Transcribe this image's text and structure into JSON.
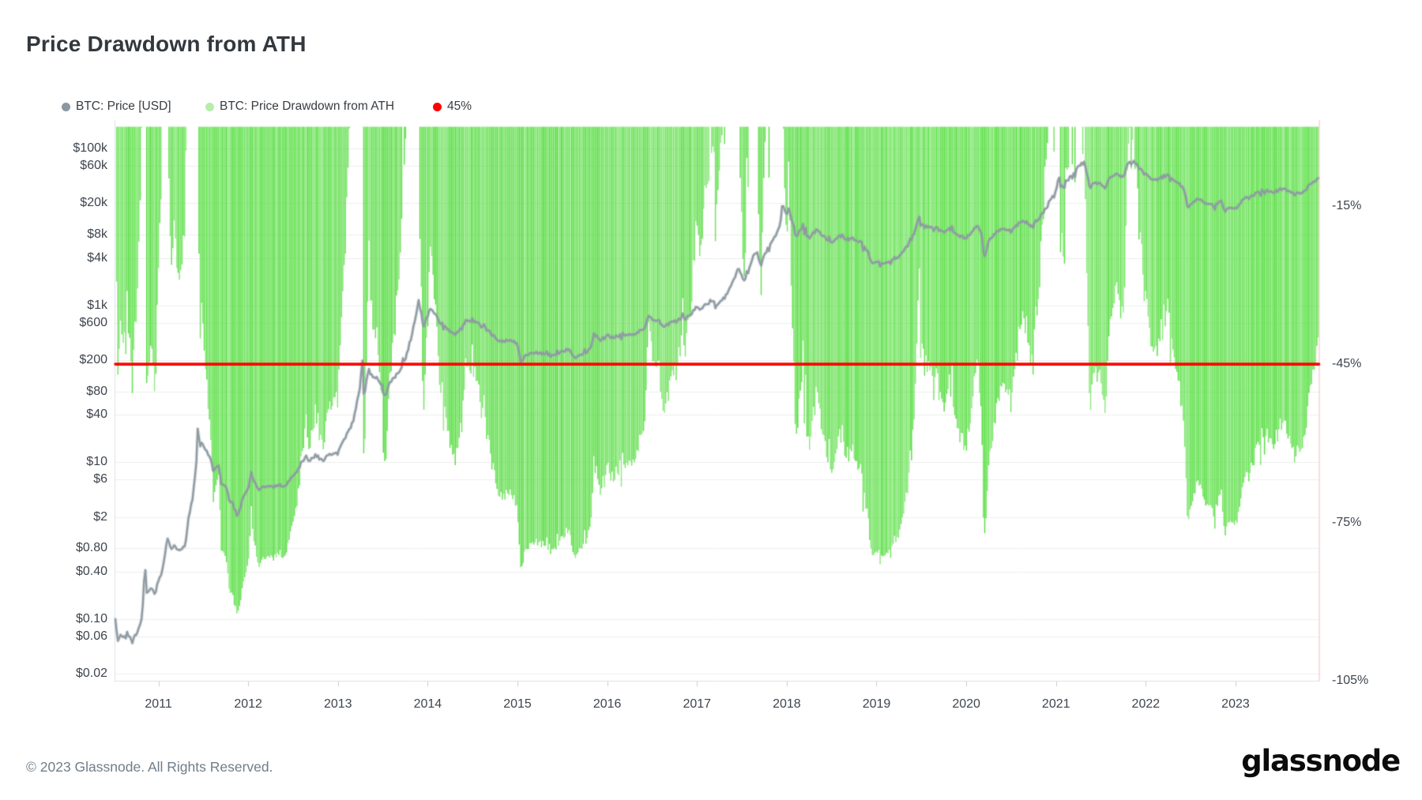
{
  "page": {
    "title": "Price Drawdown from ATH",
    "copyright": "© 2023 Glassnode. All Rights Reserved.",
    "brand_logo_text": "glassnode"
  },
  "legend": [
    {
      "id": "price",
      "label": "BTC: Price [USD]",
      "dot_color": "#8B97A1"
    },
    {
      "id": "drawdown",
      "label": "BTC: Price Drawdown from ATH",
      "dot_color": "#B7ECAC"
    },
    {
      "id": "threshold",
      "label": "45%",
      "dot_color": "#FF0000"
    }
  ],
  "chart_data": {
    "type": "area",
    "title": "Price Drawdown from ATH",
    "x_axis": {
      "unit": "year",
      "range_decimal_years": [
        2010.52,
        2023.92
      ],
      "ticks": [
        2011,
        2012,
        2013,
        2014,
        2015,
        2016,
        2017,
        2018,
        2019,
        2020,
        2021,
        2022,
        2023
      ]
    },
    "price_axis": {
      "side": "left",
      "scale": "log",
      "unit": "USD",
      "ticks": [
        {
          "value": 100000,
          "label": "$100k"
        },
        {
          "value": 60000,
          "label": "$60k"
        },
        {
          "value": 20000,
          "label": "$20k"
        },
        {
          "value": 8000,
          "label": "$8k"
        },
        {
          "value": 4000,
          "label": "$4k"
        },
        {
          "value": 1000,
          "label": "$1k"
        },
        {
          "value": 600,
          "label": "$600"
        },
        {
          "value": 200,
          "label": "$200"
        },
        {
          "value": 80,
          "label": "$80"
        },
        {
          "value": 40,
          "label": "$40"
        },
        {
          "value": 10,
          "label": "$10"
        },
        {
          "value": 6,
          "label": "$6"
        },
        {
          "value": 2,
          "label": "$2"
        },
        {
          "value": 0.8,
          "label": "$0.80"
        },
        {
          "value": 0.4,
          "label": "$0.40"
        },
        {
          "value": 0.1,
          "label": "$0.10"
        },
        {
          "value": 0.06,
          "label": "$0.06"
        },
        {
          "value": 0.02,
          "label": "$0.02"
        }
      ]
    },
    "drawdown_axis": {
      "side": "right",
      "unit": "%",
      "range": [
        0,
        -105.3
      ],
      "ticks": [
        {
          "value": -15,
          "label": "-15%"
        },
        {
          "value": -45,
          "label": "-45%"
        },
        {
          "value": -75,
          "label": "-75%"
        },
        {
          "value": -105,
          "label": "-105%"
        }
      ]
    },
    "threshold_line": {
      "label": "45%",
      "drawdown_percent": -45,
      "color": "#FF0000"
    },
    "grid": {
      "horizontal": true,
      "color": "#EDEEEF"
    },
    "colors": {
      "drawdown_fill": "#55DD3F",
      "price_line": "#8F9AA3",
      "threshold": "#FF0000",
      "axis_border": "#DCE0E3",
      "right_axis_border": "#F4BDBF"
    },
    "series": [
      {
        "name": "BTC: Price [USD]",
        "type": "line",
        "axis": "price",
        "color": "#8F9AA3",
        "points_decimal_year_usd": [
          [
            2010.52,
            0.09
          ],
          [
            2010.55,
            0.052
          ],
          [
            2010.58,
            0.062
          ],
          [
            2010.63,
            0.058
          ],
          [
            2010.67,
            0.06
          ],
          [
            2010.71,
            0.056
          ],
          [
            2010.75,
            0.062
          ],
          [
            2010.79,
            0.085
          ],
          [
            2010.82,
            0.105
          ],
          [
            2010.85,
            0.5
          ],
          [
            2010.87,
            0.21
          ],
          [
            2010.92,
            0.25
          ],
          [
            2010.96,
            0.21
          ],
          [
            2011.0,
            0.3
          ],
          [
            2011.04,
            0.38
          ],
          [
            2011.1,
            1.06
          ],
          [
            2011.14,
            0.75
          ],
          [
            2011.17,
            0.88
          ],
          [
            2011.21,
            0.8
          ],
          [
            2011.25,
            0.77
          ],
          [
            2011.3,
            0.86
          ],
          [
            2011.33,
            1.78
          ],
          [
            2011.38,
            3.4
          ],
          [
            2011.42,
            8.4
          ],
          [
            2011.44,
            31
          ],
          [
            2011.46,
            14.5
          ],
          [
            2011.48,
            17.5
          ],
          [
            2011.5,
            16.2
          ],
          [
            2011.54,
            13.6
          ],
          [
            2011.58,
            10.9
          ],
          [
            2011.61,
            7.7
          ],
          [
            2011.67,
            9.2
          ],
          [
            2011.7,
            5.4
          ],
          [
            2011.75,
            4.9
          ],
          [
            2011.79,
            3.3
          ],
          [
            2011.83,
            3.0
          ],
          [
            2011.88,
            2.05
          ],
          [
            2011.9,
            2.4
          ],
          [
            2011.92,
            2.9
          ],
          [
            2011.96,
            4.0
          ],
          [
            2012.0,
            4.6
          ],
          [
            2012.03,
            7.0
          ],
          [
            2012.08,
            5.4
          ],
          [
            2012.13,
            4.4
          ],
          [
            2012.17,
            4.9
          ],
          [
            2012.25,
            4.85
          ],
          [
            2012.33,
            5.0
          ],
          [
            2012.42,
            5.1
          ],
          [
            2012.5,
            6.6
          ],
          [
            2012.55,
            7.5
          ],
          [
            2012.58,
            9.3
          ],
          [
            2012.63,
            11.9
          ],
          [
            2012.67,
            10.1
          ],
          [
            2012.75,
            12.35
          ],
          [
            2012.83,
            10.7
          ],
          [
            2012.92,
            12.5
          ],
          [
            2013.0,
            13.4
          ],
          [
            2013.08,
            20
          ],
          [
            2013.17,
            33
          ],
          [
            2013.25,
            93
          ],
          [
            2013.27,
            230
          ],
          [
            2013.29,
            68
          ],
          [
            2013.33,
            135
          ],
          [
            2013.42,
            122
          ],
          [
            2013.5,
            95
          ],
          [
            2013.51,
            68
          ],
          [
            2013.58,
            103
          ],
          [
            2013.67,
            138
          ],
          [
            2013.75,
            200
          ],
          [
            2013.83,
            450
          ],
          [
            2013.9,
            1130
          ],
          [
            2013.96,
            540
          ],
          [
            2014.0,
            750
          ],
          [
            2014.04,
            930
          ],
          [
            2014.08,
            800
          ],
          [
            2014.13,
            620
          ],
          [
            2014.17,
            565
          ],
          [
            2014.25,
            455
          ],
          [
            2014.29,
            430
          ],
          [
            2014.33,
            445
          ],
          [
            2014.42,
            625
          ],
          [
            2014.5,
            640
          ],
          [
            2014.58,
            580
          ],
          [
            2014.67,
            475
          ],
          [
            2014.75,
            385
          ],
          [
            2014.83,
            335
          ],
          [
            2014.92,
            375
          ],
          [
            2015.0,
            318
          ],
          [
            2015.04,
            178
          ],
          [
            2015.08,
            222
          ],
          [
            2015.17,
            253
          ],
          [
            2015.25,
            245
          ],
          [
            2015.33,
            235
          ],
          [
            2015.42,
            230
          ],
          [
            2015.5,
            262
          ],
          [
            2015.58,
            283
          ],
          [
            2015.63,
            214
          ],
          [
            2015.67,
            230
          ],
          [
            2015.75,
            237
          ],
          [
            2015.83,
            312
          ],
          [
            2015.85,
            430
          ],
          [
            2015.92,
            360
          ],
          [
            2016.0,
            430
          ],
          [
            2016.08,
            373
          ],
          [
            2016.17,
            436
          ],
          [
            2016.25,
            416
          ],
          [
            2016.33,
            448
          ],
          [
            2016.42,
            530
          ],
          [
            2016.46,
            770
          ],
          [
            2016.5,
            672
          ],
          [
            2016.58,
            624
          ],
          [
            2016.63,
            520
          ],
          [
            2016.67,
            575
          ],
          [
            2016.75,
            610
          ],
          [
            2016.83,
            700
          ],
          [
            2016.92,
            744
          ],
          [
            2017.0,
            963
          ],
          [
            2017.04,
            890
          ],
          [
            2017.08,
            970
          ],
          [
            2017.17,
            1180
          ],
          [
            2017.21,
            980
          ],
          [
            2017.25,
            1070
          ],
          [
            2017.33,
            1345
          ],
          [
            2017.42,
            2280
          ],
          [
            2017.46,
            2950
          ],
          [
            2017.5,
            2480
          ],
          [
            2017.53,
            1950
          ],
          [
            2017.58,
            2870
          ],
          [
            2017.63,
            4400
          ],
          [
            2017.67,
            4700
          ],
          [
            2017.71,
            3200
          ],
          [
            2017.75,
            4340
          ],
          [
            2017.83,
            6470
          ],
          [
            2017.88,
            8000
          ],
          [
            2017.92,
            9900
          ],
          [
            2017.96,
            19300
          ],
          [
            2018.0,
            14150
          ],
          [
            2018.02,
            16900
          ],
          [
            2018.08,
            10200
          ],
          [
            2018.1,
            6950
          ],
          [
            2018.13,
            8550
          ],
          [
            2018.17,
            10400
          ],
          [
            2018.25,
            6970
          ],
          [
            2018.33,
            9240
          ],
          [
            2018.42,
            7490
          ],
          [
            2018.5,
            6400
          ],
          [
            2018.58,
            7780
          ],
          [
            2018.67,
            7030
          ],
          [
            2018.75,
            6620
          ],
          [
            2018.83,
            6310
          ],
          [
            2018.87,
            5600
          ],
          [
            2018.92,
            4020
          ],
          [
            2018.96,
            3250
          ],
          [
            2019.0,
            3740
          ],
          [
            2019.08,
            3460
          ],
          [
            2019.17,
            3850
          ],
          [
            2019.25,
            4100
          ],
          [
            2019.33,
            5350
          ],
          [
            2019.42,
            8570
          ],
          [
            2019.48,
            13500
          ],
          [
            2019.5,
            10800
          ],
          [
            2019.58,
            10080
          ],
          [
            2019.67,
            9600
          ],
          [
            2019.75,
            8290
          ],
          [
            2019.81,
            9700
          ],
          [
            2019.83,
            9200
          ],
          [
            2019.92,
            7560
          ],
          [
            2020.0,
            7190
          ],
          [
            2020.08,
            9350
          ],
          [
            2020.12,
            10350
          ],
          [
            2020.17,
            8600
          ],
          [
            2020.2,
            3900
          ],
          [
            2020.25,
            6430
          ],
          [
            2020.33,
            8650
          ],
          [
            2020.42,
            9460
          ],
          [
            2020.5,
            9130
          ],
          [
            2020.58,
            11320
          ],
          [
            2020.67,
            11670
          ],
          [
            2020.71,
            10250
          ],
          [
            2020.75,
            10780
          ],
          [
            2020.83,
            13780
          ],
          [
            2020.92,
            19600
          ],
          [
            2021.0,
            28990
          ],
          [
            2021.02,
            40700
          ],
          [
            2021.06,
            31000
          ],
          [
            2021.08,
            33100
          ],
          [
            2021.13,
            38500
          ],
          [
            2021.17,
            45100
          ],
          [
            2021.25,
            58900
          ],
          [
            2021.28,
            63500
          ],
          [
            2021.33,
            57700
          ],
          [
            2021.38,
            31000
          ],
          [
            2021.42,
            37300
          ],
          [
            2021.5,
            35000
          ],
          [
            2021.55,
            29900
          ],
          [
            2021.58,
            41600
          ],
          [
            2021.67,
            47100
          ],
          [
            2021.75,
            43700
          ],
          [
            2021.8,
            66000
          ],
          [
            2021.83,
            61300
          ],
          [
            2021.86,
            68500
          ],
          [
            2021.92,
            57000
          ],
          [
            2022.0,
            46300
          ],
          [
            2022.08,
            38400
          ],
          [
            2022.17,
            43200
          ],
          [
            2022.25,
            45500
          ],
          [
            2022.33,
            37700
          ],
          [
            2022.42,
            31790
          ],
          [
            2022.46,
            20100
          ],
          [
            2022.48,
            17800
          ],
          [
            2022.5,
            19780
          ],
          [
            2022.58,
            23330
          ],
          [
            2022.67,
            20050
          ],
          [
            2022.75,
            19430
          ],
          [
            2022.83,
            20490
          ],
          [
            2022.89,
            15600
          ],
          [
            2022.92,
            17170
          ],
          [
            2023.0,
            16550
          ],
          [
            2023.08,
            23140
          ],
          [
            2023.17,
            23150
          ],
          [
            2023.25,
            28480
          ],
          [
            2023.33,
            29270
          ],
          [
            2023.42,
            27220
          ],
          [
            2023.5,
            30480
          ],
          [
            2023.58,
            29230
          ],
          [
            2023.67,
            25930
          ],
          [
            2023.7,
            26960
          ],
          [
            2023.75,
            27000
          ],
          [
            2023.83,
            34670
          ],
          [
            2023.88,
            37720
          ],
          [
            2023.92,
            42800
          ]
        ]
      },
      {
        "name": "BTC: Price Drawdown from ATH",
        "type": "area",
        "axis": "drawdown",
        "color": "#55DD3F",
        "derivation": "drawdown_pct = 100 * (price / running_ATH - 1)"
      }
    ]
  }
}
